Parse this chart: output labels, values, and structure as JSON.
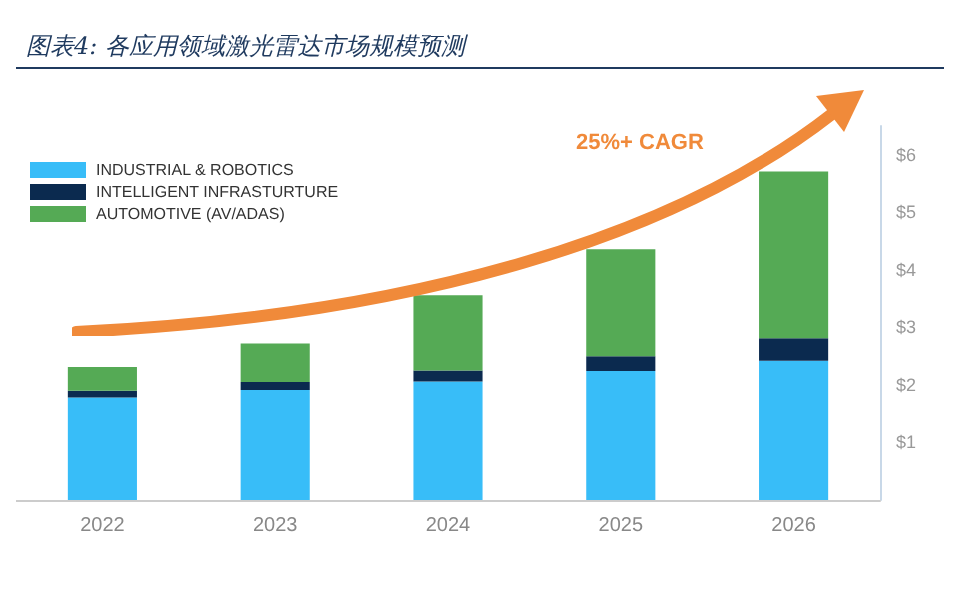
{
  "chart_data": {
    "type": "bar",
    "title": "图表4: 各应用领域激光雷达市场规模预测",
    "stacked": true,
    "categories": [
      "2022",
      "2023",
      "2024",
      "2025",
      "2026"
    ],
    "series": [
      {
        "name": "INDUSTRIAL & ROBOTICS",
        "color": "#38bdf8",
        "values": [
          1.78,
          1.91,
          2.06,
          2.24,
          2.42
        ]
      },
      {
        "name": "INTELLIGENT INFRASTURTURE",
        "color": "#0b2a4f",
        "values": [
          0.12,
          0.14,
          0.19,
          0.26,
          0.39
        ]
      },
      {
        "name": "AUTOMOTIVE (AV/ADAS)",
        "color": "#55aa55",
        "values": [
          0.41,
          0.67,
          1.31,
          1.86,
          2.9
        ]
      }
    ],
    "ylim": [
      0,
      6.5
    ],
    "yticks": [
      {
        "value": 1,
        "label": "$1"
      },
      {
        "value": 2,
        "label": "$2"
      },
      {
        "value": 3,
        "label": "$3"
      },
      {
        "value": 4,
        "label": "$4"
      },
      {
        "value": 5,
        "label": "$5"
      },
      {
        "value": 6,
        "label": "$6"
      }
    ],
    "grid": false,
    "legend": "top left",
    "annotations": [
      "25%+ CAGR"
    ]
  }
}
